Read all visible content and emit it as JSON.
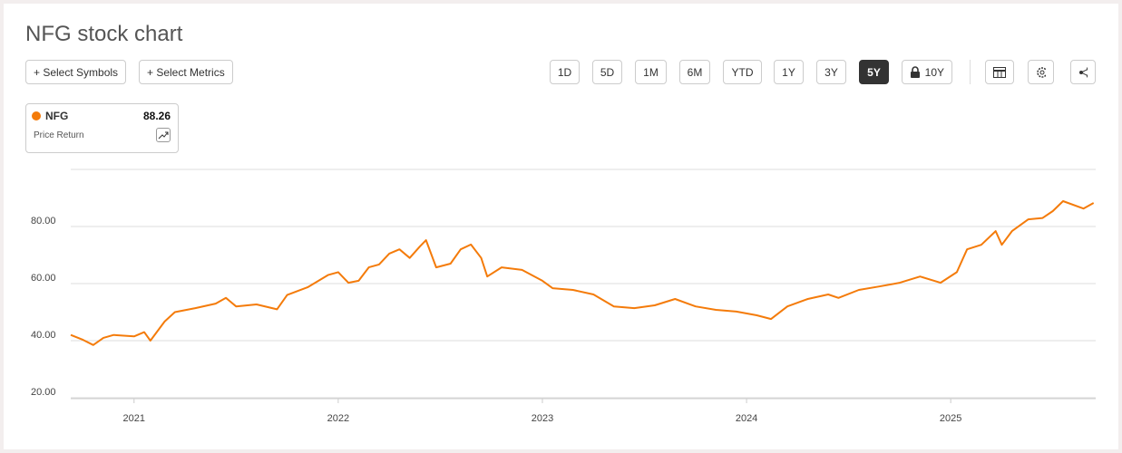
{
  "header": {
    "title": "NFG stock chart"
  },
  "toolbar": {
    "left_buttons": [
      "+ Select Symbols",
      "+ Select Metrics"
    ],
    "range_buttons": [
      {
        "label": "1D"
      },
      {
        "label": "5D"
      },
      {
        "label": "1M"
      },
      {
        "label": "6M"
      },
      {
        "label": "YTD"
      },
      {
        "label": "1Y"
      },
      {
        "label": "3Y"
      },
      {
        "label": "5Y",
        "active": true
      },
      {
        "label": "10Y",
        "locked": true
      }
    ]
  },
  "legend": {
    "value": 88.26,
    "metric": "Price Return"
  },
  "chart_data": {
    "type": "line",
    "x": [
      2020.69,
      2020.75,
      2020.8,
      2020.85,
      2020.9,
      2021.0,
      2021.05,
      2021.08,
      2021.15,
      2021.2,
      2021.3,
      2021.4,
      2021.45,
      2021.5,
      2021.6,
      2021.7,
      2021.75,
      2021.85,
      2021.95,
      2022.0,
      2022.05,
      2022.1,
      2022.15,
      2022.2,
      2022.25,
      2022.3,
      2022.35,
      2022.4,
      2022.43,
      2022.48,
      2022.55,
      2022.6,
      2022.65,
      2022.7,
      2022.73,
      2022.8,
      2022.9,
      2023.0,
      2023.05,
      2023.15,
      2023.25,
      2023.35,
      2023.45,
      2023.55,
      2023.65,
      2023.75,
      2023.85,
      2023.95,
      2024.05,
      2024.12,
      2024.2,
      2024.3,
      2024.4,
      2024.45,
      2024.55,
      2024.65,
      2024.75,
      2024.85,
      2024.95,
      2025.03,
      2025.08,
      2025.15,
      2025.22,
      2025.25,
      2025.3,
      2025.38,
      2025.45,
      2025.5,
      2025.55,
      2025.65,
      2025.7
    ],
    "series": [
      {
        "name": "NFG",
        "color": "#f47b0a",
        "values": [
          42,
          40.3,
          38.5,
          41,
          42,
          41.5,
          43,
          40,
          46.7,
          50,
          51.4,
          53,
          55,
          52,
          52.7,
          51,
          56,
          58.7,
          63,
          64,
          60.3,
          61,
          65.7,
          66.7,
          70.5,
          72,
          69,
          73,
          75.2,
          65.7,
          67,
          72,
          73.7,
          69,
          62.5,
          65.7,
          64.8,
          61,
          58.4,
          57.8,
          56.2,
          52,
          51.4,
          52.4,
          54.6,
          52,
          50.8,
          50.2,
          48.9,
          47.6,
          52,
          54.6,
          56.2,
          55,
          57.8,
          59,
          60.3,
          62.5,
          60.3,
          64,
          72,
          73.6,
          78.4,
          73.6,
          78.4,
          82.5,
          83,
          85.4,
          88.9,
          86.3,
          88.26
        ]
      }
    ],
    "xlim": [
      2020.69,
      2025.71
    ],
    "xticks": [
      2021,
      2022,
      2023,
      2024,
      2025
    ],
    "ylim": [
      19.7,
      100
    ],
    "yticks": [
      {
        "value": 20,
        "label": "20.00"
      },
      {
        "value": 40,
        "label": "40.00"
      },
      {
        "value": 60,
        "label": "60.00"
      },
      {
        "value": 80,
        "label": "80.00"
      }
    ],
    "grid": true
  }
}
